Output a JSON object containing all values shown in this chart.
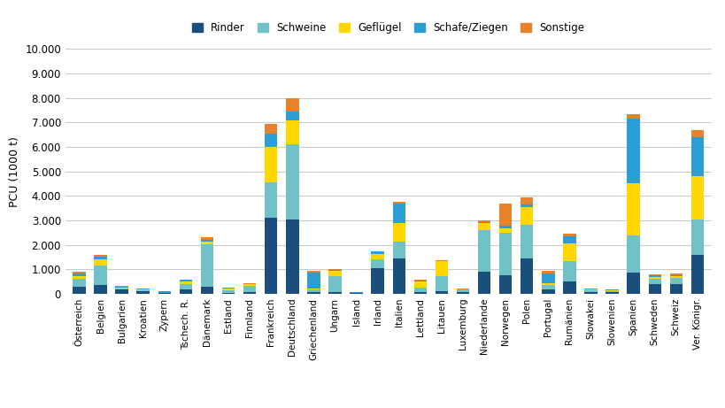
{
  "categories": [
    "Österreich",
    "Belgien",
    "Bulgarien",
    "Kroatien",
    "Zypern",
    "Tschech. R.",
    "Dänemark",
    "Estland",
    "Finnland",
    "Frankreich",
    "Deutschland",
    "Griechenland",
    "Ungarn",
    "Island",
    "Irland",
    "Italien",
    "Lettland",
    "Litauen",
    "Luxemburg",
    "Niederlande",
    "Norwegen",
    "Polen",
    "Portugal",
    "Rumänien",
    "Slowakei",
    "Slowenien",
    "Spanien",
    "Schweden",
    "Schweiz",
    "Ver. Königr."
  ],
  "series": {
    "Rinder": [
      300,
      370,
      180,
      100,
      25,
      170,
      270,
      50,
      80,
      3100,
      3050,
      60,
      70,
      20,
      1050,
      1450,
      60,
      120,
      80,
      900,
      750,
      1450,
      180,
      500,
      60,
      60,
      850,
      380,
      380,
      1600
    ],
    "Schweine": [
      310,
      800,
      50,
      40,
      10,
      220,
      1750,
      80,
      260,
      1450,
      3050,
      120,
      650,
      15,
      340,
      680,
      200,
      600,
      80,
      1700,
      1750,
      1350,
      170,
      850,
      70,
      60,
      1550,
      230,
      260,
      1450
    ],
    "Geflügel": [
      120,
      250,
      30,
      40,
      15,
      110,
      120,
      100,
      55,
      1450,
      1000,
      50,
      200,
      15,
      230,
      750,
      250,
      600,
      25,
      280,
      180,
      750,
      90,
      700,
      50,
      25,
      2100,
      75,
      75,
      1750
    ],
    "Schafe/Ziegen": [
      110,
      90,
      30,
      25,
      60,
      60,
      70,
      20,
      15,
      550,
      350,
      650,
      50,
      5,
      110,
      800,
      40,
      30,
      10,
      60,
      100,
      110,
      400,
      300,
      20,
      20,
      2650,
      60,
      55,
      1600
    ],
    "Sonstige": [
      60,
      80,
      15,
      10,
      5,
      30,
      110,
      10,
      10,
      400,
      550,
      60,
      25,
      5,
      20,
      90,
      20,
      30,
      10,
      70,
      900,
      280,
      100,
      100,
      20,
      20,
      180,
      50,
      55,
      300
    ]
  },
  "colors": {
    "Rinder": "#1A4E7C",
    "Schweine": "#70C1C8",
    "Geflügel": "#FFD700",
    "Schafe/Ziegen": "#2B9FD4",
    "Sonstige": "#E8812B"
  },
  "ylabel": "PCU (1000 t)",
  "ylim": [
    0,
    10000
  ],
  "yticks": [
    0,
    1000,
    2000,
    3000,
    4000,
    5000,
    6000,
    7000,
    8000,
    9000,
    10000
  ],
  "ytick_labels": [
    "0",
    "1.000",
    "2.000",
    "3.000",
    "4.000",
    "5.000",
    "6.000",
    "7.000",
    "8.000",
    "9.000",
    "10.000"
  ],
  "background_color": "#FFFFFF",
  "grid_color": "#C8C8C8"
}
